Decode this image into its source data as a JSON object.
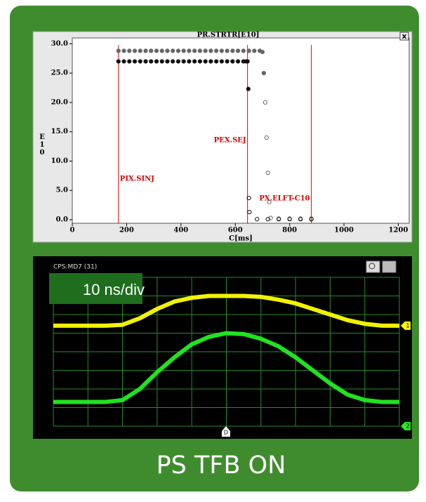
{
  "chart_data": [
    {
      "type": "scatter",
      "title": "PR.STRTR[E10]",
      "close_label": "x",
      "x_label": "C[ms]",
      "y_label": "E10",
      "xlim": [
        0,
        1240
      ],
      "ylim": [
        -0.6,
        31
      ],
      "xticks": [
        0,
        200,
        400,
        600,
        800,
        1000,
        1200
      ],
      "yticks": [
        {
          "value": 0,
          "label": "0.0"
        },
        {
          "value": 5,
          "label": "5.0"
        },
        {
          "value": 10,
          "label": "10.0"
        },
        {
          "value": 15,
          "label": "15.0"
        },
        {
          "value": 20,
          "label": "20.0"
        },
        {
          "value": 25,
          "label": "25.0"
        },
        {
          "value": 30,
          "label": "30.0"
        }
      ],
      "annotations": [
        {
          "x": 170,
          "label": "PIX.SINJ"
        },
        {
          "x": 645,
          "label": "PEX.SEJ"
        },
        {
          "x": 880,
          "label": "PX.ELFT-C10"
        }
      ],
      "annotation_color": "#d40000",
      "series": [
        {
          "color": "#666666",
          "x": [
            170,
            190,
            210,
            230,
            250,
            270,
            290,
            310,
            330,
            350,
            370,
            390,
            410,
            430,
            450,
            470,
            490,
            510,
            530,
            550,
            570,
            590,
            610,
            630,
            650,
            670,
            690,
            700,
            705,
            710,
            715,
            720,
            725,
            730,
            760,
            800,
            840,
            880
          ],
          "values": [
            28.8,
            28.8,
            28.8,
            28.8,
            28.8,
            28.8,
            28.8,
            28.8,
            28.8,
            28.8,
            28.8,
            28.8,
            28.8,
            28.8,
            28.8,
            28.8,
            28.8,
            28.8,
            28.8,
            28.8,
            28.8,
            28.8,
            28.8,
            28.8,
            28.8,
            28.8,
            28.8,
            28.6,
            25,
            20,
            14,
            8,
            3,
            0.3,
            0.2,
            0.2,
            0.2,
            0.2
          ]
        },
        {
          "color": "#111111",
          "x": [
            170,
            190,
            210,
            230,
            250,
            270,
            290,
            310,
            330,
            350,
            370,
            390,
            410,
            430,
            450,
            470,
            490,
            510,
            530,
            550,
            570,
            590,
            610,
            630,
            640,
            645,
            648,
            650,
            652,
            680,
            720,
            760,
            800,
            840,
            880
          ],
          "values": [
            27.0,
            27.0,
            27.0,
            27.0,
            27.0,
            27.0,
            27.0,
            27.0,
            27.0,
            27.0,
            27.0,
            27.0,
            27.0,
            27.0,
            27.0,
            27.0,
            27.0,
            27.0,
            27.0,
            27.0,
            27.0,
            27.0,
            27.0,
            27.0,
            27.0,
            27.0,
            22.3,
            3.7,
            1.3,
            0.1,
            0.1,
            0.1,
            0.1,
            0.1,
            0.1
          ]
        }
      ]
    },
    {
      "type": "line",
      "title": "CPS:MD7 (31)",
      "annotation": "10 ns/div",
      "trigger_label": "D",
      "xlim": [
        0,
        10
      ],
      "ylim": [
        0,
        8
      ],
      "xticks": [
        0,
        1,
        2,
        3,
        4,
        5,
        6,
        7,
        8,
        9,
        10
      ],
      "yticks": [
        0,
        1,
        2,
        3,
        4,
        5,
        6,
        7,
        8
      ],
      "grid": true,
      "x": [
        0,
        0.5,
        1,
        1.5,
        2,
        2.5,
        3,
        3.5,
        4,
        4.5,
        5,
        5.5,
        6,
        6.5,
        7,
        7.5,
        8,
        8.5,
        9,
        9.5,
        10
      ],
      "series": [
        {
          "name": "1",
          "color": "#ffff00",
          "values": [
            5.4,
            5.4,
            5.4,
            5.4,
            5.45,
            5.8,
            6.3,
            6.7,
            6.9,
            7.0,
            7.0,
            7.0,
            6.95,
            6.8,
            6.6,
            6.3,
            6.0,
            5.7,
            5.5,
            5.4,
            5.4
          ]
        },
        {
          "name": "2",
          "color": "#22ee22",
          "values": [
            1.3,
            1.3,
            1.3,
            1.3,
            1.4,
            2.0,
            2.9,
            3.7,
            4.4,
            4.8,
            5.0,
            4.95,
            4.7,
            4.3,
            3.7,
            3.0,
            2.3,
            1.7,
            1.4,
            1.3,
            1.3
          ]
        }
      ]
    }
  ],
  "caption": "PS TFB ON"
}
